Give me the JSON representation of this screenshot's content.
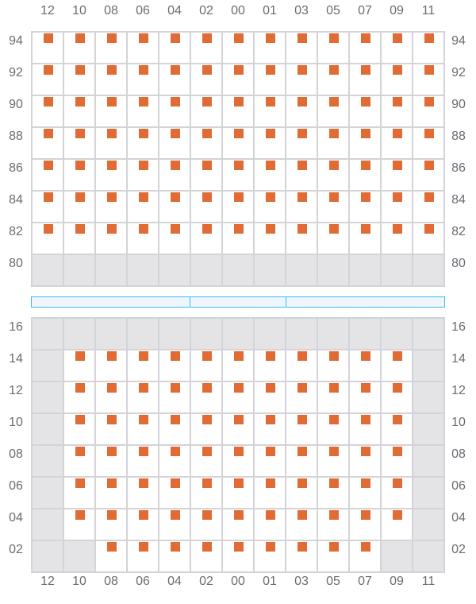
{
  "columns": [
    "12",
    "10",
    "08",
    "06",
    "04",
    "02",
    "00",
    "01",
    "03",
    "05",
    "07",
    "09",
    "11"
  ],
  "colors": {
    "available": "#e06b35",
    "unavailable": "#e4e4e7",
    "divider": "#38bdf8"
  },
  "upper_section": {
    "rows": [
      {
        "label": "94",
        "seats": "AAAAAAAAAAAAA"
      },
      {
        "label": "92",
        "seats": "AAAAAAAAAAAAA"
      },
      {
        "label": "90",
        "seats": "AAAAAAAAAAAAA"
      },
      {
        "label": "88",
        "seats": "AAAAAAAAAAAAA"
      },
      {
        "label": "86",
        "seats": "AAAAAAAAAAAAA"
      },
      {
        "label": "84",
        "seats": "AAAAAAAAAAAAA"
      },
      {
        "label": "82",
        "seats": "AAAAAAAAAAAAA"
      },
      {
        "label": "80",
        "seats": "XXXXXXXXXXXXX"
      }
    ]
  },
  "divider_segments": [
    5,
    3,
    5
  ],
  "lower_section": {
    "rows": [
      {
        "label": "16",
        "seats": "XXXXXXXXXXXXX"
      },
      {
        "label": "14",
        "seats": "XAAAAAAAAAAAX"
      },
      {
        "label": "12",
        "seats": "XAAAAAAAAAAAX"
      },
      {
        "label": "10",
        "seats": "XAAAAAAAAAAAX"
      },
      {
        "label": "08",
        "seats": "XAAAAAAAAAAAX"
      },
      {
        "label": "06",
        "seats": "XAAAAAAAAAAAX"
      },
      {
        "label": "04",
        "seats": "XAAAAAAAAAAAX"
      },
      {
        "label": "02",
        "seats": "XXAAAAAAAAAXX"
      }
    ]
  }
}
